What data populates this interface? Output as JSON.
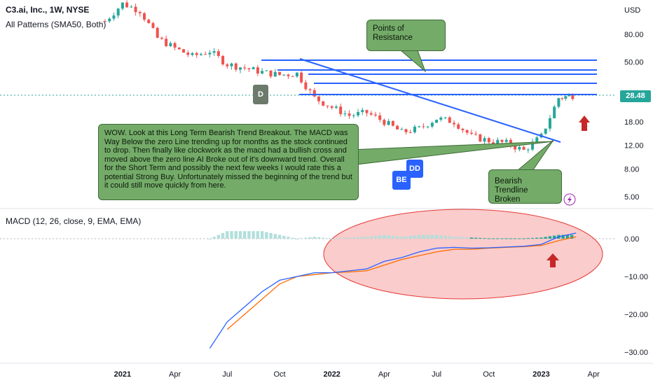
{
  "header": {
    "symbol": "C3.ai, Inc., 1W, NYSE",
    "indicator": "All Patterns (SMA50, Both)",
    "macd_label": "MACD (12, 26, close, 9, EMA, EMA)"
  },
  "annotations": {
    "resistance": "Points of Resistance",
    "main_text": "WOW.  Look at this Long Term Bearish Trend Breakout. The MACD was Way Below the zero Line trending up for months as the stock continued to drop.  Then finally like clockwork as the macd had a bullish cross and moved above the zero line AI Broke out of it's downward trend.  Overall for the Short Term and possibly the next few weeks I would rate this a potential Strong Buy.  Unfortunately missed the beginning of the trend but it could still move quickly from here.",
    "trendline": "Bearish Trendline Broken"
  },
  "badges": {
    "d": "D",
    "dd": "DD",
    "be": "BE"
  },
  "price_tag": "28.48",
  "colors": {
    "up": "#26a69a",
    "down": "#ef5350",
    "resistance": "#2962ff",
    "macd": "#2962ff",
    "signal": "#ff6d00",
    "callout": "#74ab69",
    "arrow": "#c62828",
    "ellipse": "#f8bbbb"
  },
  "chart_data": [
    {
      "type": "line",
      "title": "C3.ai, Inc., 1W, NYSE",
      "scale": "log",
      "y_unit": "USD",
      "y_ticks": [
        5,
        8,
        12,
        18,
        28.48,
        50,
        80
      ],
      "y_tick_labels": [
        "5.00",
        "8.00",
        "12.00",
        "18.00",
        "28.48",
        "50.00",
        "80.00"
      ],
      "x_ticks": [
        "2021",
        "Apr",
        "Jul",
        "Oct",
        "2022",
        "Apr",
        "Jul",
        "Oct",
        "2023",
        "Apr"
      ],
      "x": [
        "2020-12",
        "2021-01",
        "2021-02",
        "2021-03",
        "2021-04",
        "2021-05",
        "2021-06",
        "2021-07",
        "2021-08",
        "2021-09",
        "2021-10",
        "2021-11",
        "2021-12",
        "2022-01",
        "2022-02",
        "2022-03",
        "2022-04",
        "2022-05",
        "2022-06",
        "2022-07",
        "2022-08",
        "2022-09",
        "2022-10",
        "2022-11",
        "2022-12",
        "2023-01",
        "2023-02",
        "2023-03"
      ],
      "series": [
        {
          "values": [
            100,
            135,
            120,
            75,
            63,
            55,
            60,
            48,
            45,
            42,
            40,
            41,
            27,
            23,
            20,
            21,
            18,
            15,
            16,
            19,
            18,
            14,
            13,
            12.5,
            11,
            14,
            27,
            28.48
          ]
        }
      ],
      "last_price": 28.48
    },
    {
      "type": "line",
      "title": "MACD (12, 26, close, 9, EMA, EMA)",
      "y_ticks": [
        0,
        -10,
        -20,
        -30
      ],
      "y_tick_labels": [
        "0.00",
        "−10.00",
        "−20.00",
        "−30.00"
      ],
      "x": [
        "2021-06",
        "2021-07",
        "2021-08",
        "2021-09",
        "2021-10",
        "2021-11",
        "2021-12",
        "2022-01",
        "2022-02",
        "2022-03",
        "2022-04",
        "2022-05",
        "2022-06",
        "2022-07",
        "2022-08",
        "2022-09",
        "2022-10",
        "2022-11",
        "2022-12",
        "2023-01",
        "2023-02",
        "2023-03"
      ],
      "series": [
        {
          "values": [
            -29,
            -22,
            -18,
            -14,
            -11,
            -10,
            -9,
            -9,
            -8.5,
            -8,
            -6,
            -5,
            -3.5,
            -2.5,
            -2.3,
            -2.5,
            -2.4,
            -2.2,
            -2,
            -1.5,
            0.5,
            1.5
          ]
        },
        {
          "values": [
            null,
            -24,
            -20,
            -16,
            -12,
            -10,
            -9.5,
            -9,
            -8.8,
            -8.5,
            -7,
            -5.5,
            -4.5,
            -3.5,
            -2.8,
            -2.8,
            -2.5,
            -2.3,
            -2.1,
            -1.8,
            -0.5,
            0.5
          ]
        }
      ]
    }
  ]
}
